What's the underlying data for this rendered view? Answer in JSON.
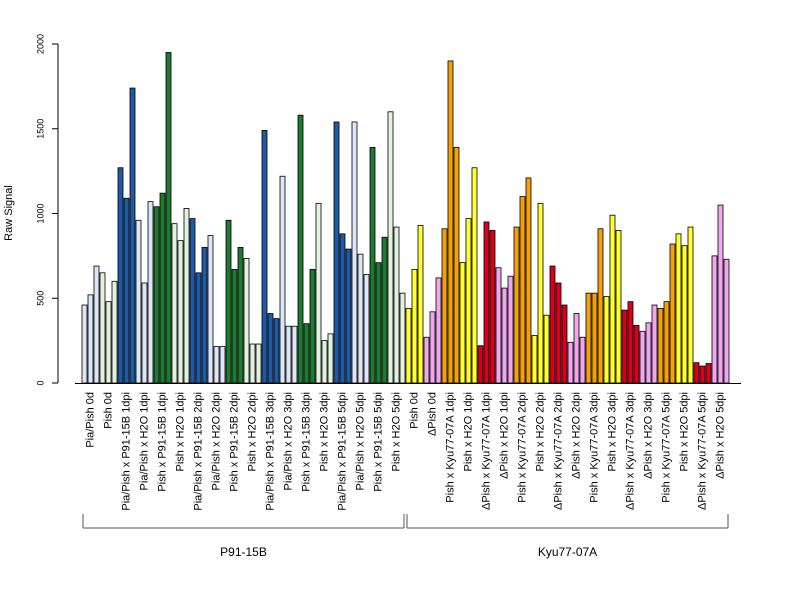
{
  "chart_data": {
    "type": "bar",
    "ylabel": "Raw Signal",
    "xlabel": "",
    "title": "",
    "ylim": [
      0,
      2000
    ],
    "yticks": [
      0,
      500,
      1000,
      1500,
      2000
    ],
    "grid": false,
    "colors": {
      "lightblue": "#dbe6f7",
      "darkblue": "#1f5aa6",
      "lightgreen": "#e2f2de",
      "darkgreen": "#1e7a2e",
      "yellow": "#ffff33",
      "pink": "#f2a6f0",
      "red": "#d8001c",
      "orange": "#f5a00a"
    },
    "categories": [
      {
        "label": "Pia/Pish 0d",
        "color": "lightblue",
        "values": [
          460,
          520,
          690
        ]
      },
      {
        "label": "Pish 0d",
        "color": "lightgreen",
        "values": [
          650,
          480,
          600
        ]
      },
      {
        "label": "Pia/Pish x P91-15B 1dpi",
        "color": "darkblue",
        "values": [
          1270,
          1090,
          1740
        ]
      },
      {
        "label": "Pia/Pish x H2O 1dpi",
        "color": "lightblue",
        "values": [
          960,
          590,
          1070
        ]
      },
      {
        "label": "Pish x P91-15B 1dpi",
        "color": "darkgreen",
        "values": [
          1040,
          1120,
          1950
        ]
      },
      {
        "label": "Pish x H2O 1dpi",
        "color": "lightgreen",
        "values": [
          940,
          840,
          1030
        ]
      },
      {
        "label": "Pia/Pish x P91-15B 2dpi",
        "color": "darkblue",
        "values": [
          970,
          650,
          800
        ]
      },
      {
        "label": "Pia/Pish x H2O 2dpi",
        "color": "lightblue",
        "values": [
          870,
          215,
          215
        ]
      },
      {
        "label": "Pish x P91-15B 2dpi",
        "color": "darkgreen",
        "values": [
          960,
          670,
          800
        ]
      },
      {
        "label": "Pish x H2O 2dpi",
        "color": "lightgreen",
        "values": [
          735,
          230,
          230
        ]
      },
      {
        "label": "Pia/Pish x P91-15B 3dpi",
        "color": "darkblue",
        "values": [
          1490,
          410,
          380
        ]
      },
      {
        "label": "Pia/Pish x H2O 3dpi",
        "color": "lightblue",
        "values": [
          1220,
          335,
          335
        ]
      },
      {
        "label": "Pish x P91-15B 3dpi",
        "color": "darkgreen",
        "values": [
          1580,
          350,
          670
        ]
      },
      {
        "label": "Pish x H2O 3dpi",
        "color": "lightgreen",
        "values": [
          1060,
          250,
          290
        ]
      },
      {
        "label": "Pia/Pish x P91-15B 5dpi",
        "color": "darkblue",
        "values": [
          1540,
          880,
          790
        ]
      },
      {
        "label": "Pia/Pish x H2O 5dpi",
        "color": "lightblue",
        "values": [
          1540,
          760,
          640
        ]
      },
      {
        "label": "Pish x P91-15B 5dpi",
        "color": "darkgreen",
        "values": [
          1390,
          710,
          860
        ]
      },
      {
        "label": "Pish x H2O 5dpi",
        "color": "lightgreen",
        "values": [
          1600,
          920,
          530
        ]
      },
      {
        "label": "Pish 0d",
        "color": "yellow",
        "values": [
          440,
          670,
          930
        ]
      },
      {
        "label": "ΔPish 0d",
        "color": "pink",
        "values": [
          270,
          420,
          620
        ]
      },
      {
        "label": "Pish x Kyu77-07A 1dpi",
        "color": "orange",
        "values": [
          910,
          1900,
          1390
        ]
      },
      {
        "label": "Pish x H2O 1dpi",
        "color": "yellow",
        "values": [
          710,
          970,
          1270
        ]
      },
      {
        "label": "ΔPish x Kyu77-07A 1dpi",
        "color": "red",
        "values": [
          220,
          950,
          900
        ]
      },
      {
        "label": "ΔPish x H2O 1dpi",
        "color": "pink",
        "values": [
          680,
          560,
          630
        ]
      },
      {
        "label": "Pish x Kyu77-07A 2dpi",
        "color": "orange",
        "values": [
          920,
          1100,
          1210
        ]
      },
      {
        "label": "Pish x H2O 2dpi",
        "color": "yellow",
        "values": [
          280,
          1060,
          400
        ]
      },
      {
        "label": "ΔPish x Kyu77-07A 2dpi",
        "color": "red",
        "values": [
          690,
          590,
          460
        ]
      },
      {
        "label": "ΔPish x H2O 2dpi",
        "color": "pink",
        "values": [
          240,
          410,
          270
        ]
      },
      {
        "label": "Pish x Kyu77-07A 3dpi",
        "color": "orange",
        "values": [
          530,
          530,
          910
        ]
      },
      {
        "label": "Pish x H2O 3dpi",
        "color": "yellow",
        "values": [
          510,
          990,
          900
        ]
      },
      {
        "label": "ΔPish x Kyu77-07A 3dpi",
        "color": "red",
        "values": [
          430,
          480,
          340
        ]
      },
      {
        "label": "ΔPish x H2O 3dpi",
        "color": "pink",
        "values": [
          305,
          355,
          460
        ]
      },
      {
        "label": "Pish x Kyu77-07A 5dpi",
        "color": "orange",
        "values": [
          440,
          480,
          820
        ]
      },
      {
        "label": "Pish x H2O 5dpi",
        "color": "yellow",
        "values": [
          880,
          810,
          920
        ]
      },
      {
        "label": "ΔPish x Kyu77-07A 5dpi",
        "color": "red",
        "values": [
          120,
          100,
          115
        ]
      },
      {
        "label": "ΔPish x H2O 5dpi",
        "color": "pink",
        "values": [
          750,
          1050,
          730
        ]
      }
    ],
    "groups": [
      {
        "label": "P91-15B",
        "start": 0,
        "end": 17
      },
      {
        "label": "Kyu77-07A",
        "start": 18,
        "end": 35
      }
    ]
  }
}
